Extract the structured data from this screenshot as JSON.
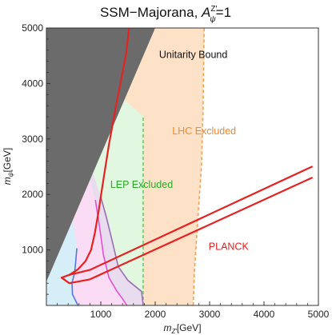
{
  "chart_data": {
    "type": "area",
    "title": {
      "main": "SSM−Majorana, ",
      "symbol": "A",
      "superscript": "Z′",
      "subscript": "ψ",
      "suffix": "=1"
    },
    "xlabel": {
      "symbol": "m",
      "subscript": "Z′",
      "unit": "[GeV]"
    },
    "ylabel": {
      "symbol": "m",
      "subscript": "ψ",
      "unit": "[GeV]"
    },
    "xlim": [
      0,
      5000
    ],
    "ylim": [
      0,
      5000
    ],
    "x_ticks": [
      1000,
      2000,
      3000,
      4000,
      5000
    ],
    "y_ticks": [
      1000,
      2000,
      3000,
      4000,
      5000
    ],
    "x_tick_labels": [
      "1000",
      "2000",
      "3000",
      "4000",
      "5000"
    ],
    "y_tick_labels": [
      "1000",
      "2000",
      "3000",
      "4000",
      "5000"
    ],
    "grid": false,
    "colors": {
      "unitarity": "#6b6b6b",
      "lhc_fill": "#fde2c8",
      "lhc_line": "#f5a04e",
      "lep_fill": "#e2f7df",
      "lep_line": "#5fd35f",
      "purple_fill": "#e9dcef",
      "purple_line": "#9a6cb4",
      "pink_fill": "#fbdcf5",
      "magenta_line": "#e050d8",
      "cyan_fill": "#d6eef8",
      "blue_line": "#5577dd",
      "planck_line": "#e52222",
      "lhc_text": "#f08a2a",
      "lep_text": "#2aa82a",
      "planck_text": "#e02020",
      "unitarity_text": "#111111"
    },
    "regions": [
      {
        "name": "Unitarity Bound",
        "boundary": [
          [
            0,
            430
          ],
          [
            2000,
            5000
          ],
          [
            0,
            5000
          ]
        ]
      },
      {
        "name": "LHC Excluded",
        "boundary_line": [
          [
            2700,
            0
          ],
          [
            2720,
            600
          ],
          [
            2780,
            1500
          ],
          [
            2850,
            2500
          ],
          [
            2880,
            3500
          ],
          [
            2900,
            5000
          ]
        ]
      },
      {
        "name": "LEP Excluded",
        "boundary_line": [
          [
            1780,
            0
          ],
          [
            1780,
            3400
          ]
        ]
      },
      {
        "name": "purple",
        "boundary_line": [
          [
            1000,
            1950
          ],
          [
            1100,
            1600
          ],
          [
            1200,
            1200
          ],
          [
            1320,
            700
          ],
          [
            1500,
            450
          ],
          [
            1750,
            250
          ],
          [
            1780,
            0
          ]
        ]
      },
      {
        "name": "magenta",
        "boundary_line": [
          [
            900,
            1900
          ],
          [
            980,
            1400
          ],
          [
            1050,
            900
          ],
          [
            1150,
            500
          ],
          [
            1300,
            250
          ],
          [
            1400,
            120
          ],
          [
            1480,
            0
          ]
        ]
      },
      {
        "name": "blue",
        "boundary_line": [
          [
            560,
            1030
          ],
          [
            540,
            800
          ],
          [
            520,
            600
          ],
          [
            470,
            400
          ],
          [
            480,
            200
          ],
          [
            580,
            0
          ]
        ]
      }
    ],
    "curves": [
      {
        "name": "relic-left",
        "points": [
          [
            280,
            500
          ],
          [
            420,
            550
          ],
          [
            580,
            650
          ],
          [
            720,
            800
          ],
          [
            820,
            1000
          ],
          [
            890,
            1300
          ],
          [
            960,
            1700
          ],
          [
            1030,
            2150
          ],
          [
            1150,
            2900
          ],
          [
            1300,
            3700
          ],
          [
            1460,
            4500
          ],
          [
            1520,
            5000
          ]
        ]
      },
      {
        "name": "relic-right-upper",
        "points": [
          [
            420,
            550
          ],
          [
            800,
            640
          ],
          [
            4880,
            2500
          ]
        ]
      },
      {
        "name": "relic-right-lower",
        "points": [
          [
            280,
            500
          ],
          [
            420,
            400
          ],
          [
            800,
            470
          ],
          [
            4880,
            2300
          ]
        ]
      }
    ],
    "annotations": [
      {
        "text": "Unitarity Bound",
        "x": 2700,
        "y": 4460
      },
      {
        "text": "LHC Excluded",
        "x": 2900,
        "y": 3080
      },
      {
        "text": "LEP Excluded",
        "x": 1750,
        "y": 2120
      },
      {
        "text": "PLANCK",
        "x": 3350,
        "y": 1000
      }
    ]
  }
}
